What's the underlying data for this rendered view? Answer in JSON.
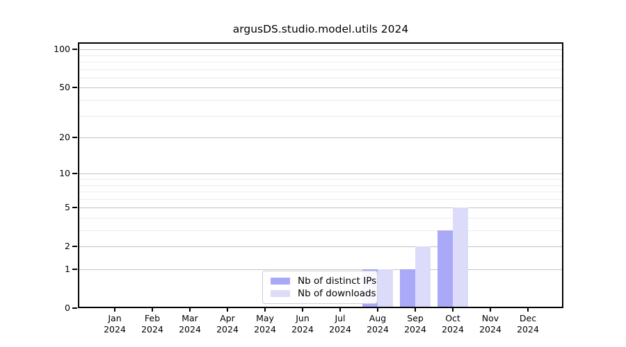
{
  "title": "argusDS.studio.model.utils 2024",
  "chart_data": {
    "type": "bar",
    "title": "argusDS.studio.model.utils 2024",
    "categories": [
      "Jan 2024",
      "Feb 2024",
      "Mar 2024",
      "Apr 2024",
      "May 2024",
      "Jun 2024",
      "Jul 2024",
      "Aug 2024",
      "Sep 2024",
      "Oct 2024",
      "Nov 2024",
      "Dec 2024"
    ],
    "series": [
      {
        "name": "Nb of distinct IPs",
        "color": "#a9a9f8",
        "values": [
          0,
          0,
          0,
          0,
          0,
          0,
          0,
          1,
          1,
          3,
          0,
          0
        ]
      },
      {
        "name": "Nb of downloads",
        "color": "#dcdcfa",
        "values": [
          0,
          0,
          0,
          0,
          0,
          0,
          0,
          1,
          2,
          5,
          0,
          0
        ]
      }
    ],
    "xlabel": "",
    "ylabel": "",
    "y_scale": "log10(1+x)",
    "ylim": [
      0,
      113
    ],
    "y_major_ticks": [
      0,
      1,
      2,
      5,
      10,
      20,
      50,
      100
    ],
    "y_minor_ticks": [
      3,
      4,
      6,
      7,
      8,
      9,
      30,
      40,
      60,
      70,
      80,
      90
    ],
    "grid": "horizontal",
    "legend_position": "lower center inside"
  },
  "legend": {
    "items": [
      {
        "label": "Nb of distinct IPs",
        "color": "#a9a9f8"
      },
      {
        "label": "Nb of downloads",
        "color": "#dcdcfa"
      }
    ]
  }
}
